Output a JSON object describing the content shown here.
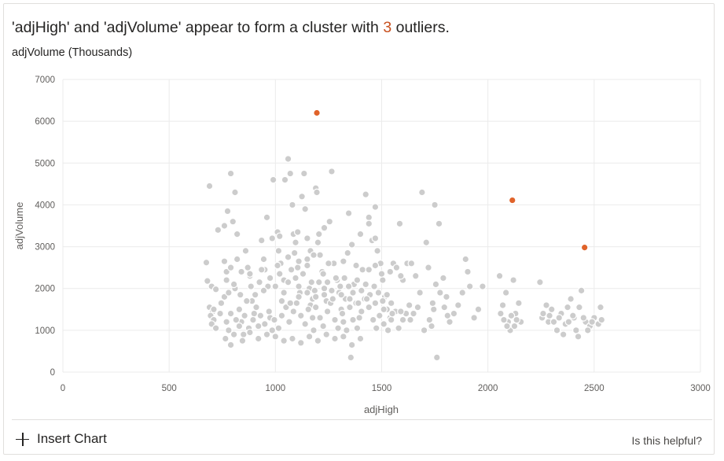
{
  "insight": {
    "text_before": "'adjHigh' and 'adjVolume' appear to form a cluster with ",
    "count": "3",
    "text_after": " outliers.",
    "subtitle": "adjVolume (Thousands)"
  },
  "footer": {
    "insert_label": "Insert Chart",
    "helpful_label": "Is this helpful?"
  },
  "colors": {
    "cluster": "#cccccc",
    "outlier": "#e0632a",
    "grid": "#ebebeb",
    "accent_text": "#c8501e"
  },
  "chart_data": {
    "type": "scatter",
    "xlabel": "adjHigh",
    "ylabel": "adjVolume",
    "xlim": [
      0,
      3000
    ],
    "ylim": [
      0,
      7000
    ],
    "x_ticks": [
      0,
      500,
      1000,
      1500,
      2000,
      2500,
      3000
    ],
    "y_ticks": [
      0,
      1000,
      2000,
      3000,
      4000,
      5000,
      6000,
      7000
    ],
    "grid": true,
    "outliers": [
      {
        "x": 1195,
        "y": 6200
      },
      {
        "x": 2115,
        "y": 4110
      },
      {
        "x": 2455,
        "y": 2980
      }
    ],
    "cluster_points": [
      [
        690,
        4450
      ],
      [
        675,
        2620
      ],
      [
        680,
        2180
      ],
      [
        700,
        2050
      ],
      [
        720,
        1980
      ],
      [
        690,
        1550
      ],
      [
        705,
        1450
      ],
      [
        695,
        1350
      ],
      [
        710,
        1250
      ],
      [
        700,
        1150
      ],
      [
        720,
        1050
      ],
      [
        740,
        1400
      ],
      [
        730,
        3400
      ],
      [
        760,
        3500
      ],
      [
        775,
        3850
      ],
      [
        790,
        4750
      ],
      [
        760,
        1800
      ],
      [
        770,
        2200
      ],
      [
        770,
        2400
      ],
      [
        780,
        1000
      ],
      [
        765,
        800
      ],
      [
        790,
        650
      ],
      [
        810,
        4300
      ],
      [
        800,
        3600
      ],
      [
        820,
        3300
      ],
      [
        820,
        2700
      ],
      [
        810,
        2000
      ],
      [
        830,
        1500
      ],
      [
        840,
        1200
      ],
      [
        850,
        900
      ],
      [
        860,
        2900
      ],
      [
        870,
        2500
      ],
      [
        880,
        2300
      ],
      [
        890,
        1700
      ],
      [
        900,
        1400
      ],
      [
        920,
        1100
      ],
      [
        935,
        3150
      ],
      [
        945,
        2700
      ],
      [
        950,
        2450
      ],
      [
        960,
        3700
      ],
      [
        965,
        2050
      ],
      [
        975,
        1300
      ],
      [
        985,
        1000
      ],
      [
        990,
        4600
      ],
      [
        1010,
        3350
      ],
      [
        1015,
        2900
      ],
      [
        1025,
        2600
      ],
      [
        1040,
        2200
      ],
      [
        1045,
        4600
      ],
      [
        1060,
        5100
      ],
      [
        1070,
        4750
      ],
      [
        1080,
        4000
      ],
      [
        1085,
        3300
      ],
      [
        1095,
        3100
      ],
      [
        1105,
        2500
      ],
      [
        1115,
        1900
      ],
      [
        1125,
        4200
      ],
      [
        1135,
        4750
      ],
      [
        1140,
        3900
      ],
      [
        1150,
        2700
      ],
      [
        1160,
        2000
      ],
      [
        1165,
        1600
      ],
      [
        1175,
        1300
      ],
      [
        1180,
        1000
      ],
      [
        1190,
        4400
      ],
      [
        1195,
        4300
      ],
      [
        1205,
        3300
      ],
      [
        1210,
        2800
      ],
      [
        1220,
        2400
      ],
      [
        1230,
        2000
      ],
      [
        1240,
        1700
      ],
      [
        1255,
        3600
      ],
      [
        1265,
        4800
      ],
      [
        1275,
        2600
      ],
      [
        1290,
        2200
      ],
      [
        1300,
        1900
      ],
      [
        1310,
        1500
      ],
      [
        1320,
        1200
      ],
      [
        1335,
        1000
      ],
      [
        1345,
        3800
      ],
      [
        1355,
        350
      ],
      [
        1370,
        2100
      ],
      [
        1380,
        1650
      ],
      [
        1395,
        1300
      ],
      [
        1410,
        2450
      ],
      [
        1425,
        4250
      ],
      [
        1440,
        3700
      ],
      [
        1455,
        3150
      ],
      [
        1470,
        3950
      ],
      [
        1480,
        2900
      ],
      [
        1495,
        2600
      ],
      [
        1505,
        2200
      ],
      [
        1515,
        1800
      ],
      [
        1525,
        1500
      ],
      [
        1540,
        1300
      ],
      [
        1555,
        2600
      ],
      [
        1570,
        2500
      ],
      [
        1585,
        3550
      ],
      [
        1600,
        2200
      ],
      [
        1620,
        2600
      ],
      [
        1640,
        2600
      ],
      [
        1660,
        2300
      ],
      [
        1680,
        1900
      ],
      [
        1690,
        4300
      ],
      [
        1710,
        3100
      ],
      [
        1720,
        2500
      ],
      [
        1735,
        1100
      ],
      [
        1745,
        1500
      ],
      [
        1750,
        4000
      ],
      [
        1760,
        350
      ],
      [
        1770,
        3550
      ],
      [
        1790,
        2250
      ],
      [
        1805,
        1800
      ],
      [
        1820,
        1200
      ],
      [
        1840,
        1400
      ],
      [
        1860,
        1600
      ],
      [
        1880,
        1900
      ],
      [
        1895,
        2700
      ],
      [
        1905,
        2400
      ],
      [
        1915,
        2050
      ],
      [
        1935,
        1300
      ],
      [
        1955,
        1500
      ],
      [
        1975,
        2050
      ],
      [
        2055,
        2300
      ],
      [
        2070,
        1600
      ],
      [
        2085,
        1900
      ],
      [
        2095,
        1200
      ],
      [
        2105,
        1000
      ],
      [
        2120,
        2200
      ],
      [
        2130,
        1400
      ],
      [
        2145,
        1650
      ],
      [
        2155,
        1200
      ],
      [
        2245,
        2150
      ],
      [
        2255,
        1300
      ],
      [
        2275,
        1600
      ],
      [
        2285,
        1200
      ],
      [
        2300,
        1500
      ],
      [
        2325,
        1000
      ],
      [
        2345,
        1400
      ],
      [
        2365,
        1150
      ],
      [
        2375,
        1550
      ],
      [
        2390,
        1750
      ],
      [
        2405,
        1300
      ],
      [
        2415,
        1000
      ],
      [
        2430,
        1550
      ],
      [
        2440,
        1950
      ],
      [
        2460,
        1200
      ],
      [
        2480,
        1100
      ],
      [
        2500,
        1300
      ],
      [
        2520,
        1150
      ],
      [
        2530,
        1550
      ],
      [
        2535,
        1250
      ],
      [
        770,
        1200
      ],
      [
        790,
        1400
      ],
      [
        815,
        1250
      ],
      [
        830,
        1100
      ],
      [
        855,
        1350
      ],
      [
        875,
        1050
      ],
      [
        895,
        1250
      ],
      [
        910,
        1550
      ],
      [
        930,
        1350
      ],
      [
        950,
        1150
      ],
      [
        970,
        1450
      ],
      [
        995,
        1250
      ],
      [
        1015,
        1050
      ],
      [
        1030,
        1350
      ],
      [
        1050,
        1550
      ],
      [
        1065,
        1200
      ],
      [
        1085,
        1450
      ],
      [
        1100,
        1650
      ],
      [
        1120,
        1350
      ],
      [
        1140,
        1150
      ],
      [
        1155,
        1500
      ],
      [
        1175,
        1750
      ],
      [
        1190,
        1550
      ],
      [
        1210,
        1300
      ],
      [
        1225,
        1100
      ],
      [
        1245,
        1450
      ],
      [
        1260,
        1650
      ],
      [
        1280,
        1250
      ],
      [
        1295,
        1050
      ],
      [
        1315,
        1400
      ],
      [
        1330,
        1750
      ],
      [
        1350,
        1550
      ],
      [
        1365,
        1250
      ],
      [
        1385,
        1050
      ],
      [
        1405,
        1450
      ],
      [
        1420,
        1750
      ],
      [
        1440,
        1550
      ],
      [
        1460,
        1250
      ],
      [
        1475,
        1050
      ],
      [
        1490,
        1350
      ],
      [
        1510,
        1150
      ],
      [
        1530,
        1000
      ],
      [
        1545,
        1250
      ],
      [
        1565,
        1450
      ],
      [
        1580,
        1050
      ],
      [
        1600,
        1250
      ],
      [
        1615,
        1400
      ],
      [
        1635,
        1250
      ],
      [
        710,
        1500
      ],
      [
        745,
        1650
      ],
      [
        780,
        1900
      ],
      [
        805,
        2100
      ],
      [
        835,
        1850
      ],
      [
        865,
        1700
      ],
      [
        885,
        2050
      ],
      [
        905,
        1850
      ],
      [
        925,
        2150
      ],
      [
        945,
        1950
      ],
      [
        975,
        2250
      ],
      [
        1000,
        2050
      ],
      [
        1020,
        2350
      ],
      [
        1040,
        1900
      ],
      [
        1060,
        2150
      ],
      [
        1075,
        2450
      ],
      [
        1095,
        2250
      ],
      [
        1110,
        2050
      ],
      [
        1130,
        2350
      ],
      [
        1150,
        2550
      ],
      [
        1170,
        2150
      ],
      [
        1185,
        1950
      ],
      [
        1205,
        2150
      ],
      [
        1225,
        2350
      ],
      [
        1245,
        2150
      ],
      [
        1265,
        1950
      ],
      [
        1285,
        2250
      ],
      [
        1305,
        2050
      ],
      [
        1325,
        2250
      ],
      [
        1345,
        2050
      ],
      [
        1365,
        1900
      ],
      [
        1385,
        2200
      ],
      [
        1405,
        1950
      ],
      [
        1425,
        2100
      ],
      [
        1445,
        1850
      ],
      [
        1465,
        2050
      ],
      [
        1485,
        1900
      ],
      [
        1505,
        1700
      ],
      [
        1525,
        1850
      ],
      [
        1545,
        1650
      ],
      [
        1700,
        1000
      ],
      [
        1725,
        1250
      ],
      [
        1740,
        1650
      ],
      [
        1755,
        2100
      ],
      [
        1775,
        1900
      ],
      [
        1795,
        1550
      ],
      [
        1810,
        1350
      ],
      [
        2060,
        1400
      ],
      [
        2075,
        1250
      ],
      [
        2090,
        1100
      ],
      [
        2110,
        1350
      ],
      [
        2125,
        1100
      ],
      [
        2135,
        1250
      ],
      [
        2260,
        1400
      ],
      [
        2290,
        1350
      ],
      [
        2310,
        1200
      ],
      [
        2335,
        1300
      ],
      [
        2355,
        900
      ],
      [
        2380,
        1200
      ],
      [
        2400,
        1350
      ],
      [
        2425,
        850
      ],
      [
        2450,
        1300
      ],
      [
        2470,
        1000
      ],
      [
        2490,
        1200
      ],
      [
        1000,
        850
      ],
      [
        1040,
        750
      ],
      [
        1080,
        800
      ],
      [
        1120,
        700
      ],
      [
        1160,
        850
      ],
      [
        1200,
        750
      ],
      [
        1240,
        900
      ],
      [
        1280,
        800
      ],
      [
        1320,
        850
      ],
      [
        1360,
        650
      ],
      [
        1400,
        800
      ],
      [
        960,
        900
      ],
      [
        920,
        800
      ],
      [
        880,
        950
      ],
      [
        845,
        750
      ],
      [
        805,
        900
      ],
      [
        1030,
        1700
      ],
      [
        1070,
        1650
      ],
      [
        1110,
        1800
      ],
      [
        1150,
        1900
      ],
      [
        1190,
        1800
      ],
      [
        1230,
        1850
      ],
      [
        1270,
        1750
      ],
      [
        1310,
        1850
      ],
      [
        1350,
        1750
      ],
      [
        1390,
        1650
      ],
      [
        1430,
        1750
      ],
      [
        1470,
        1650
      ],
      [
        1510,
        1500
      ],
      [
        1550,
        1400
      ],
      [
        1590,
        1450
      ],
      [
        1630,
        1600
      ],
      [
        1650,
        1400
      ],
      [
        1670,
        1550
      ],
      [
        1250,
        2600
      ],
      [
        1110,
        2650
      ],
      [
        1165,
        2900
      ],
      [
        1060,
        2750
      ],
      [
        1010,
        2550
      ],
      [
        935,
        2450
      ],
      [
        880,
        2350
      ],
      [
        840,
        2400
      ],
      [
        790,
        2500
      ],
      [
        760,
        2650
      ],
      [
        1320,
        2650
      ],
      [
        1380,
        2550
      ],
      [
        1440,
        2450
      ],
      [
        1500,
        2350
      ],
      [
        1540,
        2400
      ],
      [
        1590,
        2300
      ],
      [
        1470,
        2550
      ],
      [
        985,
        3200
      ],
      [
        1105,
        3350
      ],
      [
        1150,
        3200
      ],
      [
        1230,
        3450
      ],
      [
        1360,
        3050
      ],
      [
        1200,
        3100
      ],
      [
        1020,
        3250
      ],
      [
        1090,
        2850
      ],
      [
        1180,
        2800
      ],
      [
        1340,
        2850
      ],
      [
        1400,
        3300
      ],
      [
        1440,
        3550
      ],
      [
        1470,
        3200
      ]
    ]
  }
}
